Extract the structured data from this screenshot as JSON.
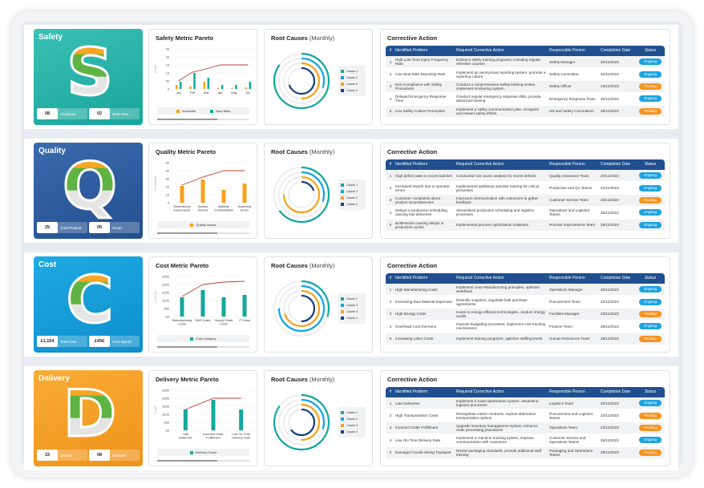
{
  "colors": {
    "cause1": "#13a89e",
    "cause2": "#0ea5e9",
    "cause3": "#f7a21b",
    "cause4": "#17407e",
    "ongoing": "#1aa3e0",
    "pending": "#f7931e",
    "line": "#c0392b",
    "header": "#1f4f8e"
  },
  "root_title": "Root Causes",
  "root_sub": "(Monthly)",
  "table_title": "Corrective Action",
  "table_headers": [
    "#",
    "Identified Problem",
    "Required Corrective Action",
    "Responsible Person",
    "Completion Date",
    "Status"
  ],
  "causes": [
    "Cause 1",
    "Cause 2",
    "Cause 3",
    "Cause 4"
  ],
  "rows": [
    {
      "name": "safety",
      "title": "Safety",
      "letter": "S",
      "color": "#3cc0b5",
      "color2": "#17a59b",
      "kpis": [
        {
          "value": "08",
          "label": "Accidents"
        },
        {
          "value": "02",
          "label": "Near Miss"
        }
      ],
      "chart_data": {
        "type": "bar",
        "title": "Safety Metric Pareto",
        "ylabel": "Count",
        "ylim": [
          0,
          25
        ],
        "yticks": [
          "0",
          "05",
          "10",
          "15",
          "20",
          "25"
        ],
        "categories": [
          "Jan",
          "Feb",
          "Mar",
          "Apr",
          "May",
          "Jun"
        ],
        "series": [
          {
            "name": "Accidents",
            "color": "#f7a21b",
            "values": [
              2.5,
              1.5,
              4.5,
              0.5,
              0.5,
              1
            ]
          },
          {
            "name": "Near Miss",
            "color": "#13a89e",
            "values": [
              4.5,
              10,
              7,
              2.5,
              2.5,
              4.5
            ]
          }
        ],
        "line": [
          5,
          10.5,
          12.5,
          15,
          15,
          15
        ]
      },
      "root_causes": [
        0.85,
        0.3,
        0.5,
        0.7
      ],
      "table": [
        [
          "1",
          "High Lost Time Injury Frequency Rate",
          "Enhance safety training programs, including regular refresher courses",
          "Safety Manager",
          "20/11/2023",
          "Ongoing"
        ],
        [
          "2",
          "Low Near Miss Reporting Rate",
          "Implement an anonymous reporting system, promote a reporting culture",
          "Safety Committee",
          "22/11/2023",
          "Ongoing"
        ],
        [
          "3",
          "Non-Compliance with Safety Procedures",
          "Conduct a comprehensive safety training review, implement monitoring system",
          "Safety Officer",
          "23/11/2023",
          "Pending"
        ],
        [
          "4",
          "Delayed Emergency Response Time",
          "Conduct regular emergency response drills, provide advanced training",
          "Emergency Response Team",
          "25/11/2023",
          "Ongoing"
        ],
        [
          "5",
          "Low Safety Culture Perception",
          "Implement a safety communication plan, recognize and reward safety efforts",
          "HR and Safety Committees",
          "28/11/2023",
          "Pending"
        ]
      ]
    },
    {
      "name": "quality",
      "title": "Quality",
      "letter": "Q",
      "color": "#3a6aae",
      "color2": "#234f8f",
      "kpis": [
        {
          "value": "25",
          "label": "Total Product"
        },
        {
          "value": "05",
          "label": "Scrap"
        }
      ],
      "chart_data": {
        "type": "bar",
        "title": "Quality Metric Pareto",
        "ylabel": "Frequency",
        "ylim": [
          0,
          50
        ],
        "yticks": [
          "0",
          "10",
          "20",
          "30",
          "40",
          "50"
        ],
        "categories": [
          "Dimensional Inaccuracies",
          "Surface Defects",
          "Material Contamination",
          "Assembly Errors"
        ],
        "series": [
          {
            "name": "Quality Issues",
            "color": "#f7a21b",
            "values": [
              21,
              29,
              16,
              24
            ]
          }
        ],
        "line": [
          22,
          32,
          40,
          40
        ]
      },
      "root_causes": [
        0.65,
        0.3,
        0.75,
        0.2
      ],
      "table": [
        [
          "1",
          "High defect rates in recent batches",
          "Conducted root cause analysis for recent defects",
          "Quality Assurance Team",
          "20/11/2023",
          "Ongoing"
        ],
        [
          "2",
          "Increased rework due to operator errors",
          "Implemented additional operator training for critical processes",
          "Production and QA Teams",
          "22/11/2023",
          "Ongoing"
        ],
        [
          "3",
          "Customer complaints about product inconsistencies",
          "Improved communication with customers to gather feedback",
          "Customer Service Team",
          "23/11/2023",
          "Pending"
        ],
        [
          "4",
          "Delays in production scheduling causing late deliveries",
          "Streamlined production scheduling and logistics processes",
          "Operations and Logistics Teams",
          "25/11/2023",
          "Ongoing"
        ],
        [
          "5",
          "Bottlenecks causing delays in production cycles",
          "Implemented process optimization initiatives",
          "Process Improvement Team",
          "28/11/2023",
          "Ongoing"
        ]
      ]
    },
    {
      "name": "cost",
      "title": "Cost",
      "letter": "C",
      "color": "#1fa9e3",
      "color2": "#0d8fcb",
      "kpis": [
        {
          "value": "£1,154",
          "label": "Total Cost"
        },
        {
          "value": "£456",
          "label": "Cost Spend"
        }
      ],
      "chart_data": {
        "type": "bar",
        "title": "Cost Metric Pareto",
        "ylabel": "Cost (£)",
        "ylim": [
          0,
          250
        ],
        "yticks": [
          "£0",
          "£50",
          "£100",
          "£150",
          "£200",
          "£250"
        ],
        "categories": [
          "Manufacturing Costs",
          "R&D Costs",
          "Supply Chain Costs",
          "IT Costs"
        ],
        "series": [
          {
            "name": "Cost Category",
            "color": "#13a89e",
            "values": [
              120,
              165,
              120,
              135
            ]
          }
        ],
        "line": [
          125,
          200,
          215,
          220
        ]
      },
      "root_causes": [
        0.3,
        0.75,
        0.7,
        0.5
      ],
      "table": [
        [
          "1",
          "High Manufacturing Costs",
          "Implement Lean Manufacturing principles, optimize workflows",
          "Operations Manager",
          "20/11/2023",
          "Ongoing"
        ],
        [
          "2",
          "Increasing Raw Material Expenses",
          "Diversify suppliers, negotiate bulk purchase agreements",
          "Procurement Team",
          "22/11/2023",
          "Ongoing"
        ],
        [
          "3",
          "High Energy Costs",
          "Invest in energy-efficient technologies, conduct energy audits",
          "Facilities Manager",
          "23/11/2023",
          "Pending"
        ],
        [
          "4",
          "Overhead Cost Overruns",
          "Improve budgeting processes, implement cost tracking mechanisms",
          "Finance Team",
          "25/11/2023",
          "Ongoing"
        ],
        [
          "5",
          "Increasing Labor Costs",
          "Implement training programs, optimize staffing levels",
          "Human Resources Team",
          "28/11/2023",
          "Pending"
        ]
      ]
    },
    {
      "name": "delivery",
      "title": "Delivery",
      "letter": "D",
      "color": "#f8ac35",
      "color2": "#f0931a",
      "kpis": [
        {
          "value": "15",
          "label": "Ontime"
        },
        {
          "value": "08",
          "label": "Delayed"
        }
      ],
      "chart_data": {
        "type": "bar",
        "title": "Delivery Metric Pareto",
        "ylabel": "Count",
        "ylim": [
          0,
          250
        ],
        "yticks": [
          "£0",
          "£50",
          "£100",
          "£150",
          "£200",
          "£250"
        ],
        "categories": [
          "Late Deliveries",
          "Incorrect Order Fulfillment",
          "Low On-Time Delivery Rate"
        ],
        "series": [
          {
            "name": "Delivery Factor",
            "color": "#13a89e",
            "values": [
              130,
              190,
              130
            ]
          }
        ],
        "line": [
          130,
          200,
          200
        ]
      },
      "root_causes": [
        0.85,
        0.3,
        0.5,
        0.65
      ],
      "table": [
        [
          "1",
          "Late Deliveries",
          "Implement a route optimization system, streamline logistics processes",
          "Logistics Team",
          "20/11/2023",
          "Ongoing"
        ],
        [
          "2",
          "High Transportation Costs",
          "Renegotiate carrier contracts, explore alternative transportation options",
          "Procurement and Logistics Teams",
          "22/11/2023",
          "Pending"
        ],
        [
          "3",
          "Incorrect Order Fulfillment",
          "Upgrade inventory management system, enhance order processing procedures",
          "Operations Team",
          "23/11/2023",
          "Pending"
        ],
        [
          "4",
          "Low On-Time Delivery Rate",
          "Implement a real-time tracking system, improve communication with customers",
          "Customer Service and Operations Teams",
          "25/11/2023",
          "Ongoing"
        ],
        [
          "5",
          "Damaged Goods during Transport",
          "Revise packaging standards, provide additional staff training",
          "Packaging and Operations Teams",
          "28/11/2023",
          "Pending"
        ]
      ]
    }
  ]
}
